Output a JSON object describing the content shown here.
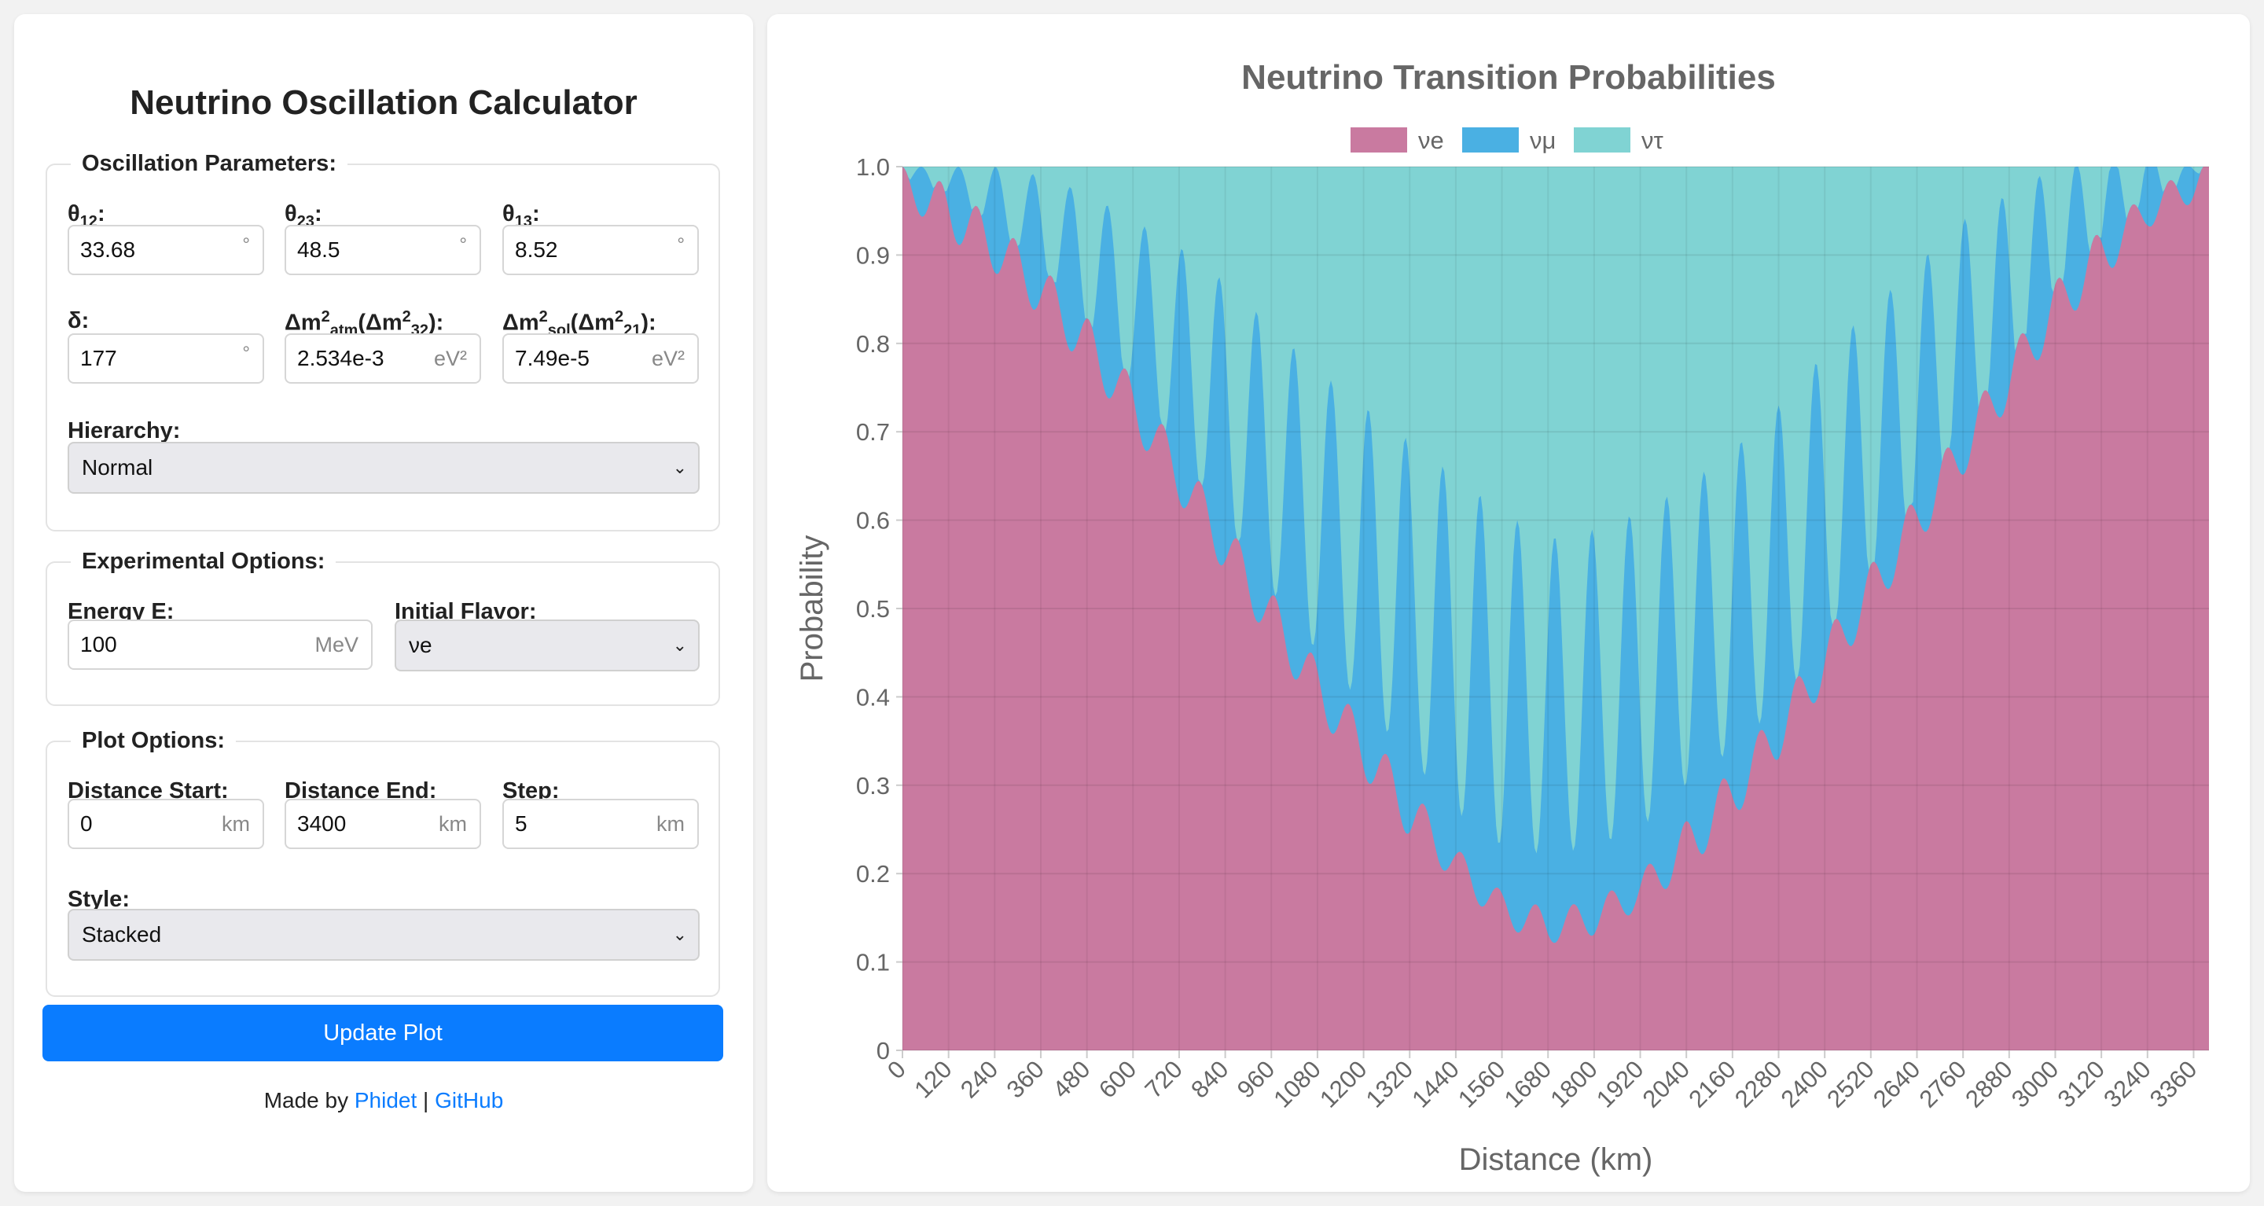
{
  "app": {
    "title": "Neutrino Oscillation Calculator"
  },
  "oscillation": {
    "legend": "Oscillation Parameters:",
    "theta12": {
      "label_main": "θ",
      "label_sub": "12",
      "label_tail": ":",
      "value": "33.68",
      "unit": "°"
    },
    "theta23": {
      "label_main": "θ",
      "label_sub": "23",
      "label_tail": ":",
      "value": "48.5",
      "unit": "°"
    },
    "theta13": {
      "label_main": "θ",
      "label_sub": "13",
      "label_tail": ":",
      "value": "8.52",
      "unit": "°"
    },
    "delta": {
      "label": "δ:",
      "value": "177",
      "unit": "°"
    },
    "dm2atm": {
      "label_a": "Δm",
      "sup1": "2",
      "sub1": "atm",
      "label_b": "(Δm",
      "sup2": "2",
      "sub2": "32",
      "label_c": "):",
      "value": "2.534e-3",
      "unit": "eV²"
    },
    "dm2sol": {
      "label_a": "Δm",
      "sup1": "2",
      "sub1": "sol",
      "label_b": "(Δm",
      "sup2": "2",
      "sub2": "21",
      "label_c": "):",
      "value": "7.49e-5",
      "unit": "eV²"
    },
    "hierarchy": {
      "label": "Hierarchy:",
      "value": "Normal"
    }
  },
  "experimental": {
    "legend": "Experimental Options:",
    "energy": {
      "label": "Energy E:",
      "value": "100",
      "unit": "MeV"
    },
    "flavor": {
      "label": "Initial Flavor:",
      "value": "νe"
    }
  },
  "plot_options": {
    "legend": "Plot Options:",
    "start": {
      "label": "Distance Start:",
      "value": "0",
      "unit": "km"
    },
    "end": {
      "label": "Distance End:",
      "value": "3400",
      "unit": "km"
    },
    "step": {
      "label": "Step:",
      "value": "5",
      "unit": "km"
    },
    "style": {
      "label": "Style:",
      "value": "Stacked"
    }
  },
  "update_button": "Update Plot",
  "footer": {
    "prefix": "Made by ",
    "author": "Phidet",
    "separator": " | ",
    "repo": "GitHub"
  },
  "icons": {
    "select_arrow": "chevron-down-icon"
  },
  "chart_data": {
    "type": "area",
    "stacked": true,
    "title": "Neutrino Transition Probabilities",
    "xlabel": "Distance (km)",
    "ylabel": "Probability",
    "ylim": [
      0,
      1
    ],
    "xlim": [
      0,
      3400
    ],
    "x_ticks": [
      "0",
      "120",
      "240",
      "360",
      "480",
      "600",
      "720",
      "840",
      "960",
      "1080",
      "1200",
      "1320",
      "1440",
      "1560",
      "1680",
      "1800",
      "1920",
      "2040",
      "2160",
      "2280",
      "2400",
      "2520",
      "2640",
      "2760",
      "2880",
      "3000",
      "3120",
      "3240",
      "3360"
    ],
    "y_ticks": [
      "0",
      "0.1",
      "0.2",
      "0.3",
      "0.4",
      "0.5",
      "0.6",
      "0.7",
      "0.8",
      "0.9",
      "1.0"
    ],
    "legend_position": "top",
    "grid": true,
    "x_step_km": 5,
    "fast_oscillation_period_km": 97,
    "series": [
      {
        "name": "νe",
        "color": "#ff6384",
        "fill": "#c97aa0",
        "envelope_x": [
          0,
          120,
          240,
          360,
          480,
          600,
          720,
          840,
          960,
          1080,
          1200,
          1320,
          1440,
          1560,
          1680,
          1800,
          1920,
          2040,
          2160,
          2280,
          2400,
          2520,
          2640,
          2760,
          2880,
          3000,
          3120,
          3240,
          3360,
          3400
        ],
        "envelope_mean": [
          0.98,
          0.95,
          0.91,
          0.86,
          0.8,
          0.73,
          0.65,
          0.57,
          0.49,
          0.41,
          0.34,
          0.27,
          0.21,
          0.16,
          0.14,
          0.15,
          0.18,
          0.23,
          0.29,
          0.36,
          0.44,
          0.52,
          0.6,
          0.68,
          0.76,
          0.84,
          0.9,
          0.95,
          0.98,
          0.99
        ],
        "envelope_amplitude": [
          0.02,
          0.03,
          0.03,
          0.03,
          0.03,
          0.03,
          0.03,
          0.03,
          0.03,
          0.03,
          0.03,
          0.03,
          0.02,
          0.02,
          0.02,
          0.02,
          0.02,
          0.03,
          0.03,
          0.03,
          0.03,
          0.03,
          0.03,
          0.03,
          0.03,
          0.03,
          0.03,
          0.02,
          0.02,
          0.02
        ]
      },
      {
        "name": "νμ",
        "color": "#36a2eb",
        "fill": "#4ab0e3",
        "envelope_x": [
          0,
          120,
          240,
          360,
          480,
          600,
          720,
          840,
          960,
          1080,
          1200,
          1320,
          1440,
          1560,
          1680,
          1800,
          1920,
          2040,
          2160,
          2280,
          2400,
          2520,
          2640,
          2760,
          2880,
          3000,
          3120,
          3240,
          3360,
          3400
        ],
        "envelope_mean": [
          0.01,
          0.03,
          0.05,
          0.07,
          0.09,
          0.11,
          0.14,
          0.16,
          0.18,
          0.2,
          0.22,
          0.24,
          0.25,
          0.26,
          0.26,
          0.26,
          0.25,
          0.24,
          0.22,
          0.2,
          0.18,
          0.16,
          0.14,
          0.12,
          0.09,
          0.07,
          0.05,
          0.03,
          0.01,
          0.01
        ],
        "envelope_amplitude": [
          0.03,
          0.05,
          0.07,
          0.09,
          0.11,
          0.13,
          0.15,
          0.17,
          0.18,
          0.19,
          0.2,
          0.21,
          0.21,
          0.21,
          0.2,
          0.2,
          0.2,
          0.2,
          0.2,
          0.2,
          0.2,
          0.19,
          0.18,
          0.17,
          0.15,
          0.12,
          0.09,
          0.06,
          0.03,
          0.02
        ]
      },
      {
        "name": "ντ",
        "color": "#4bc0c0",
        "fill": "#80d3d3",
        "note_values": "remainder to 1.0"
      }
    ]
  }
}
